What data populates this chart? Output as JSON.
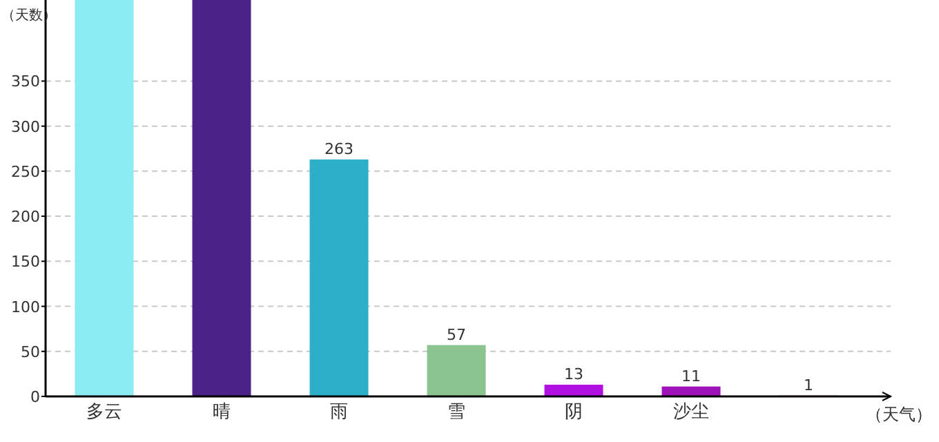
{
  "chart_data": {
    "type": "bar",
    "ylabel": "（天数）",
    "xlabel": "（天气）",
    "categories": [
      "多云",
      "晴",
      "雨",
      "雪",
      "阴",
      "沙尘",
      null
    ],
    "values": [
      440,
      440,
      263,
      57,
      13,
      11,
      1
    ],
    "value_labels": [
      null,
      null,
      "263",
      "57",
      "13",
      "11",
      "1"
    ],
    "colors": [
      "#8aecf0",
      "#4b2288",
      "#2eafc8",
      "#8bc48f",
      "#b010e0",
      "#9b12b8",
      "#a83a3a"
    ],
    "ylim": [
      0,
      440
    ],
    "yticks": [
      0,
      50,
      100,
      150,
      200,
      250,
      300,
      350
    ],
    "grid": "y"
  }
}
